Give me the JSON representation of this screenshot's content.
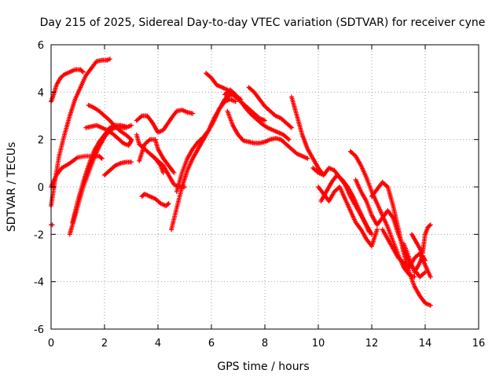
{
  "chart_data": {
    "type": "scatter",
    "title": "Day 215 of 2025, Sidereal Day-to-day VTEC variation (SDTVAR) for receiver cyne",
    "xlabel": "GPS time / hours",
    "ylabel": "SDTVAR / TECUs",
    "xlim": [
      0,
      16
    ],
    "ylim": [
      -6,
      6
    ],
    "xticks": [
      "0",
      "2",
      "4",
      "6",
      "8",
      "10",
      "12",
      "14",
      "16"
    ],
    "yticks": [
      "-6",
      "-4",
      "-2",
      "0",
      "2",
      "4",
      "6"
    ],
    "grid": true,
    "marker": "plus",
    "color": "#ff0000",
    "series": [
      {
        "x": [
          0.0,
          0.05
        ],
        "y": [
          -1.6,
          -1.6
        ]
      },
      {
        "x": [
          0.0,
          0.1,
          0.2,
          0.35,
          0.5,
          0.7,
          0.9,
          1.1,
          1.2
        ],
        "y": [
          3.6,
          3.9,
          4.3,
          4.6,
          4.75,
          4.85,
          4.95,
          4.95,
          4.85
        ]
      },
      {
        "x": [
          0.0,
          0.15,
          0.3,
          0.5,
          0.7,
          0.9,
          1.1,
          1.3,
          1.5,
          1.7,
          1.9,
          2.1,
          2.2
        ],
        "y": [
          -0.8,
          0.3,
          1.3,
          2.2,
          3.0,
          3.7,
          4.2,
          4.7,
          5.0,
          5.3,
          5.35,
          5.35,
          5.4
        ]
      },
      {
        "x": [
          0.0,
          0.2,
          0.4,
          0.7,
          1.0,
          1.3,
          1.6,
          1.8,
          1.9
        ],
        "y": [
          0.0,
          0.5,
          0.8,
          1.0,
          1.25,
          1.3,
          1.3,
          1.3,
          1.2
        ]
      },
      {
        "x": [
          0.7,
          0.8,
          1.0,
          1.2,
          1.4,
          1.6,
          1.8,
          2.0,
          2.2,
          2.4,
          2.6,
          2.8,
          3.0
        ],
        "y": [
          -2.0,
          -1.6,
          -0.8,
          0.0,
          0.6,
          1.2,
          1.7,
          2.1,
          2.4,
          2.5,
          2.5,
          2.5,
          2.6
        ]
      },
      {
        "x": [
          0.8,
          1.0,
          1.2,
          1.4,
          1.6,
          1.8,
          2.0,
          2.2,
          2.4,
          2.6,
          2.8
        ],
        "y": [
          -1.5,
          -0.6,
          0.2,
          0.9,
          1.5,
          1.9,
          2.2,
          2.5,
          2.6,
          2.6,
          2.55
        ]
      },
      {
        "x": [
          1.3,
          1.5,
          1.7,
          1.9,
          2.1,
          2.3,
          2.5,
          2.7,
          2.9,
          3.0
        ],
        "y": [
          2.5,
          2.55,
          2.6,
          2.5,
          2.4,
          2.25,
          2.05,
          1.85,
          1.75,
          1.95
        ]
      },
      {
        "x": [
          1.4,
          1.6,
          1.8,
          2.0,
          2.2,
          2.4,
          2.6,
          2.8,
          3.0
        ],
        "y": [
          3.45,
          3.35,
          3.2,
          3.0,
          2.8,
          2.55,
          2.35,
          2.2,
          2.0
        ]
      },
      {
        "x": [
          2.0,
          2.2,
          2.4,
          2.6,
          2.8,
          3.0
        ],
        "y": [
          0.5,
          0.7,
          0.9,
          1.0,
          1.05,
          1.05
        ]
      },
      {
        "x": [
          3.2,
          3.3,
          3.5,
          3.7,
          3.9,
          4.1,
          4.2
        ],
        "y": [
          2.2,
          1.8,
          1.6,
          1.4,
          1.2,
          0.9,
          0.6
        ]
      },
      {
        "x": [
          3.2,
          3.4,
          3.6,
          3.8,
          4.0,
          4.2,
          4.5,
          4.7,
          4.9,
          5.1,
          5.3
        ],
        "y": [
          2.8,
          3.0,
          3.0,
          2.7,
          2.3,
          2.4,
          2.9,
          3.2,
          3.25,
          3.15,
          3.1
        ]
      },
      {
        "x": [
          3.3,
          3.5,
          3.7,
          3.9,
          4.0,
          4.2,
          4.4,
          4.6
        ],
        "y": [
          1.1,
          1.8,
          2.0,
          2.0,
          1.6,
          1.2,
          0.9,
          0.6
        ]
      },
      {
        "x": [
          3.4,
          3.5,
          3.7,
          3.9,
          4.1,
          4.3,
          4.4
        ],
        "y": [
          -0.4,
          -0.3,
          -0.4,
          -0.5,
          -0.7,
          -0.8,
          -0.7
        ]
      },
      {
        "x": [
          3.8,
          4.0,
          4.2,
          4.4,
          4.6,
          4.8,
          5.0
        ],
        "y": [
          1.3,
          1.1,
          0.9,
          0.5,
          0.1,
          0.0,
          0.0
        ]
      },
      {
        "x": [
          4.5,
          4.7,
          4.9,
          5.1,
          5.3,
          5.5,
          5.7,
          5.9,
          6.1,
          6.3,
          6.5,
          6.7,
          6.9
        ],
        "y": [
          -1.8,
          -0.9,
          0.0,
          0.7,
          1.2,
          1.6,
          2.0,
          2.4,
          2.9,
          3.3,
          3.6,
          3.7,
          3.6
        ]
      },
      {
        "x": [
          4.7,
          4.9,
          5.1,
          5.3,
          5.5,
          5.7,
          5.9,
          6.1,
          6.3,
          6.5,
          6.7,
          6.9,
          7.1
        ],
        "y": [
          -0.2,
          0.6,
          1.2,
          1.6,
          1.9,
          2.1,
          2.4,
          2.8,
          3.3,
          3.7,
          3.9,
          3.85,
          3.7
        ]
      },
      {
        "x": [
          5.8,
          6.0,
          6.2,
          6.4,
          6.6,
          6.8,
          7.0,
          7.2,
          7.4,
          7.6,
          7.8,
          8.0
        ],
        "y": [
          4.8,
          4.6,
          4.3,
          4.2,
          4.1,
          3.9,
          3.7,
          3.5,
          3.3,
          3.1,
          2.9,
          2.8
        ]
      },
      {
        "x": [
          6.6,
          6.8,
          7.0,
          7.2,
          7.4,
          7.6,
          7.8,
          8.0,
          8.2,
          8.4,
          8.6,
          8.8,
          9.0,
          9.2,
          9.4,
          9.6
        ],
        "y": [
          3.2,
          2.6,
          2.2,
          1.95,
          1.9,
          1.85,
          1.85,
          1.9,
          2.0,
          2.05,
          2.0,
          1.8,
          1.6,
          1.4,
          1.3,
          1.2
        ]
      },
      {
        "x": [
          6.5,
          6.7,
          6.9,
          7.1,
          7.3,
          7.5,
          7.7,
          7.9,
          8.1,
          8.3,
          8.5,
          8.7,
          8.9
        ],
        "y": [
          3.9,
          4.1,
          3.9,
          3.6,
          3.3,
          3.05,
          2.85,
          2.65,
          2.5,
          2.4,
          2.3,
          2.2,
          2.0
        ]
      },
      {
        "x": [
          7.4,
          7.6,
          7.8,
          8.0,
          8.2,
          8.4,
          8.6,
          8.8,
          9.0
        ],
        "y": [
          4.2,
          4.0,
          3.7,
          3.4,
          3.2,
          3.0,
          2.9,
          2.7,
          2.5
        ]
      },
      {
        "x": [
          9.0,
          9.1,
          9.2,
          9.3,
          9.4,
          9.5,
          9.6,
          9.8,
          10.0,
          10.2
        ],
        "y": [
          3.8,
          3.4,
          3.0,
          2.6,
          2.2,
          1.9,
          1.6,
          1.2,
          0.8,
          0.5
        ]
      },
      {
        "x": [
          9.8,
          10.0,
          10.2,
          10.4,
          10.6,
          10.8,
          11.0,
          11.2,
          11.4,
          11.6,
          11.8,
          12.0
        ],
        "y": [
          0.8,
          0.6,
          0.5,
          0.8,
          0.7,
          0.4,
          0.1,
          -0.4,
          -0.8,
          -1.2,
          -1.6,
          -2.0
        ]
      },
      {
        "x": [
          10.0,
          10.2,
          10.4,
          10.6,
          10.8,
          11.0,
          11.2,
          11.4,
          11.6,
          11.8,
          12.0,
          12.2
        ],
        "y": [
          0.0,
          -0.3,
          -0.6,
          -0.2,
          0.0,
          -0.5,
          -1.0,
          -1.5,
          -1.8,
          -2.2,
          -2.5,
          -1.8
        ]
      },
      {
        "x": [
          10.1,
          10.3,
          10.5,
          10.7,
          10.9,
          11.1,
          11.3,
          11.5,
          11.7,
          11.9
        ],
        "y": [
          -0.6,
          -0.2,
          0.2,
          0.5,
          0.3,
          0.0,
          -0.4,
          -0.9,
          -1.4,
          -1.9
        ]
      },
      {
        "x": [
          11.2,
          11.4,
          11.6,
          11.8,
          12.0,
          12.2,
          12.4,
          12.6,
          12.8,
          13.0,
          13.2,
          13.4,
          13.6
        ],
        "y": [
          1.5,
          1.3,
          0.9,
          0.4,
          -0.2,
          -0.7,
          -1.2,
          -1.7,
          -2.3,
          -2.9,
          -3.4,
          -3.7,
          -3.8
        ]
      },
      {
        "x": [
          11.4,
          11.6,
          11.8,
          12.0,
          12.2,
          12.4,
          12.6,
          12.8,
          13.0,
          13.2,
          13.4,
          13.6,
          13.8,
          14.0
        ],
        "y": [
          0.3,
          -0.2,
          -0.6,
          -1.2,
          -1.6,
          -1.3,
          -1.0,
          -1.3,
          -2.0,
          -2.6,
          -3.2,
          -3.5,
          -3.8,
          -3.6
        ]
      },
      {
        "x": [
          12.0,
          12.2,
          12.4,
          12.6,
          12.8,
          13.0,
          13.2,
          13.4,
          13.6,
          13.8,
          14.0,
          14.2
        ],
        "y": [
          -0.4,
          -0.1,
          0.2,
          0.0,
          -0.8,
          -1.8,
          -2.8,
          -3.6,
          -4.2,
          -4.6,
          -4.9,
          -5.0
        ]
      },
      {
        "x": [
          12.4,
          12.6,
          12.8,
          13.0,
          13.2,
          13.4,
          13.6,
          13.8,
          14.0,
          14.2
        ],
        "y": [
          -1.8,
          -2.2,
          -2.6,
          -3.0,
          -3.2,
          -3.4,
          -3.0,
          -2.8,
          -3.3,
          -3.8
        ]
      },
      {
        "x": [
          13.5,
          13.7,
          13.9,
          14.0,
          14.1,
          14.2
        ],
        "y": [
          -2.0,
          -2.4,
          -2.8,
          -2.0,
          -1.7,
          -1.6
        ]
      },
      {
        "x": [
          13.2,
          13.4,
          13.6,
          13.8,
          13.9,
          14.0
        ],
        "y": [
          -2.4,
          -3.0,
          -3.6,
          -3.2,
          -2.9,
          -3.1
        ]
      }
    ]
  }
}
